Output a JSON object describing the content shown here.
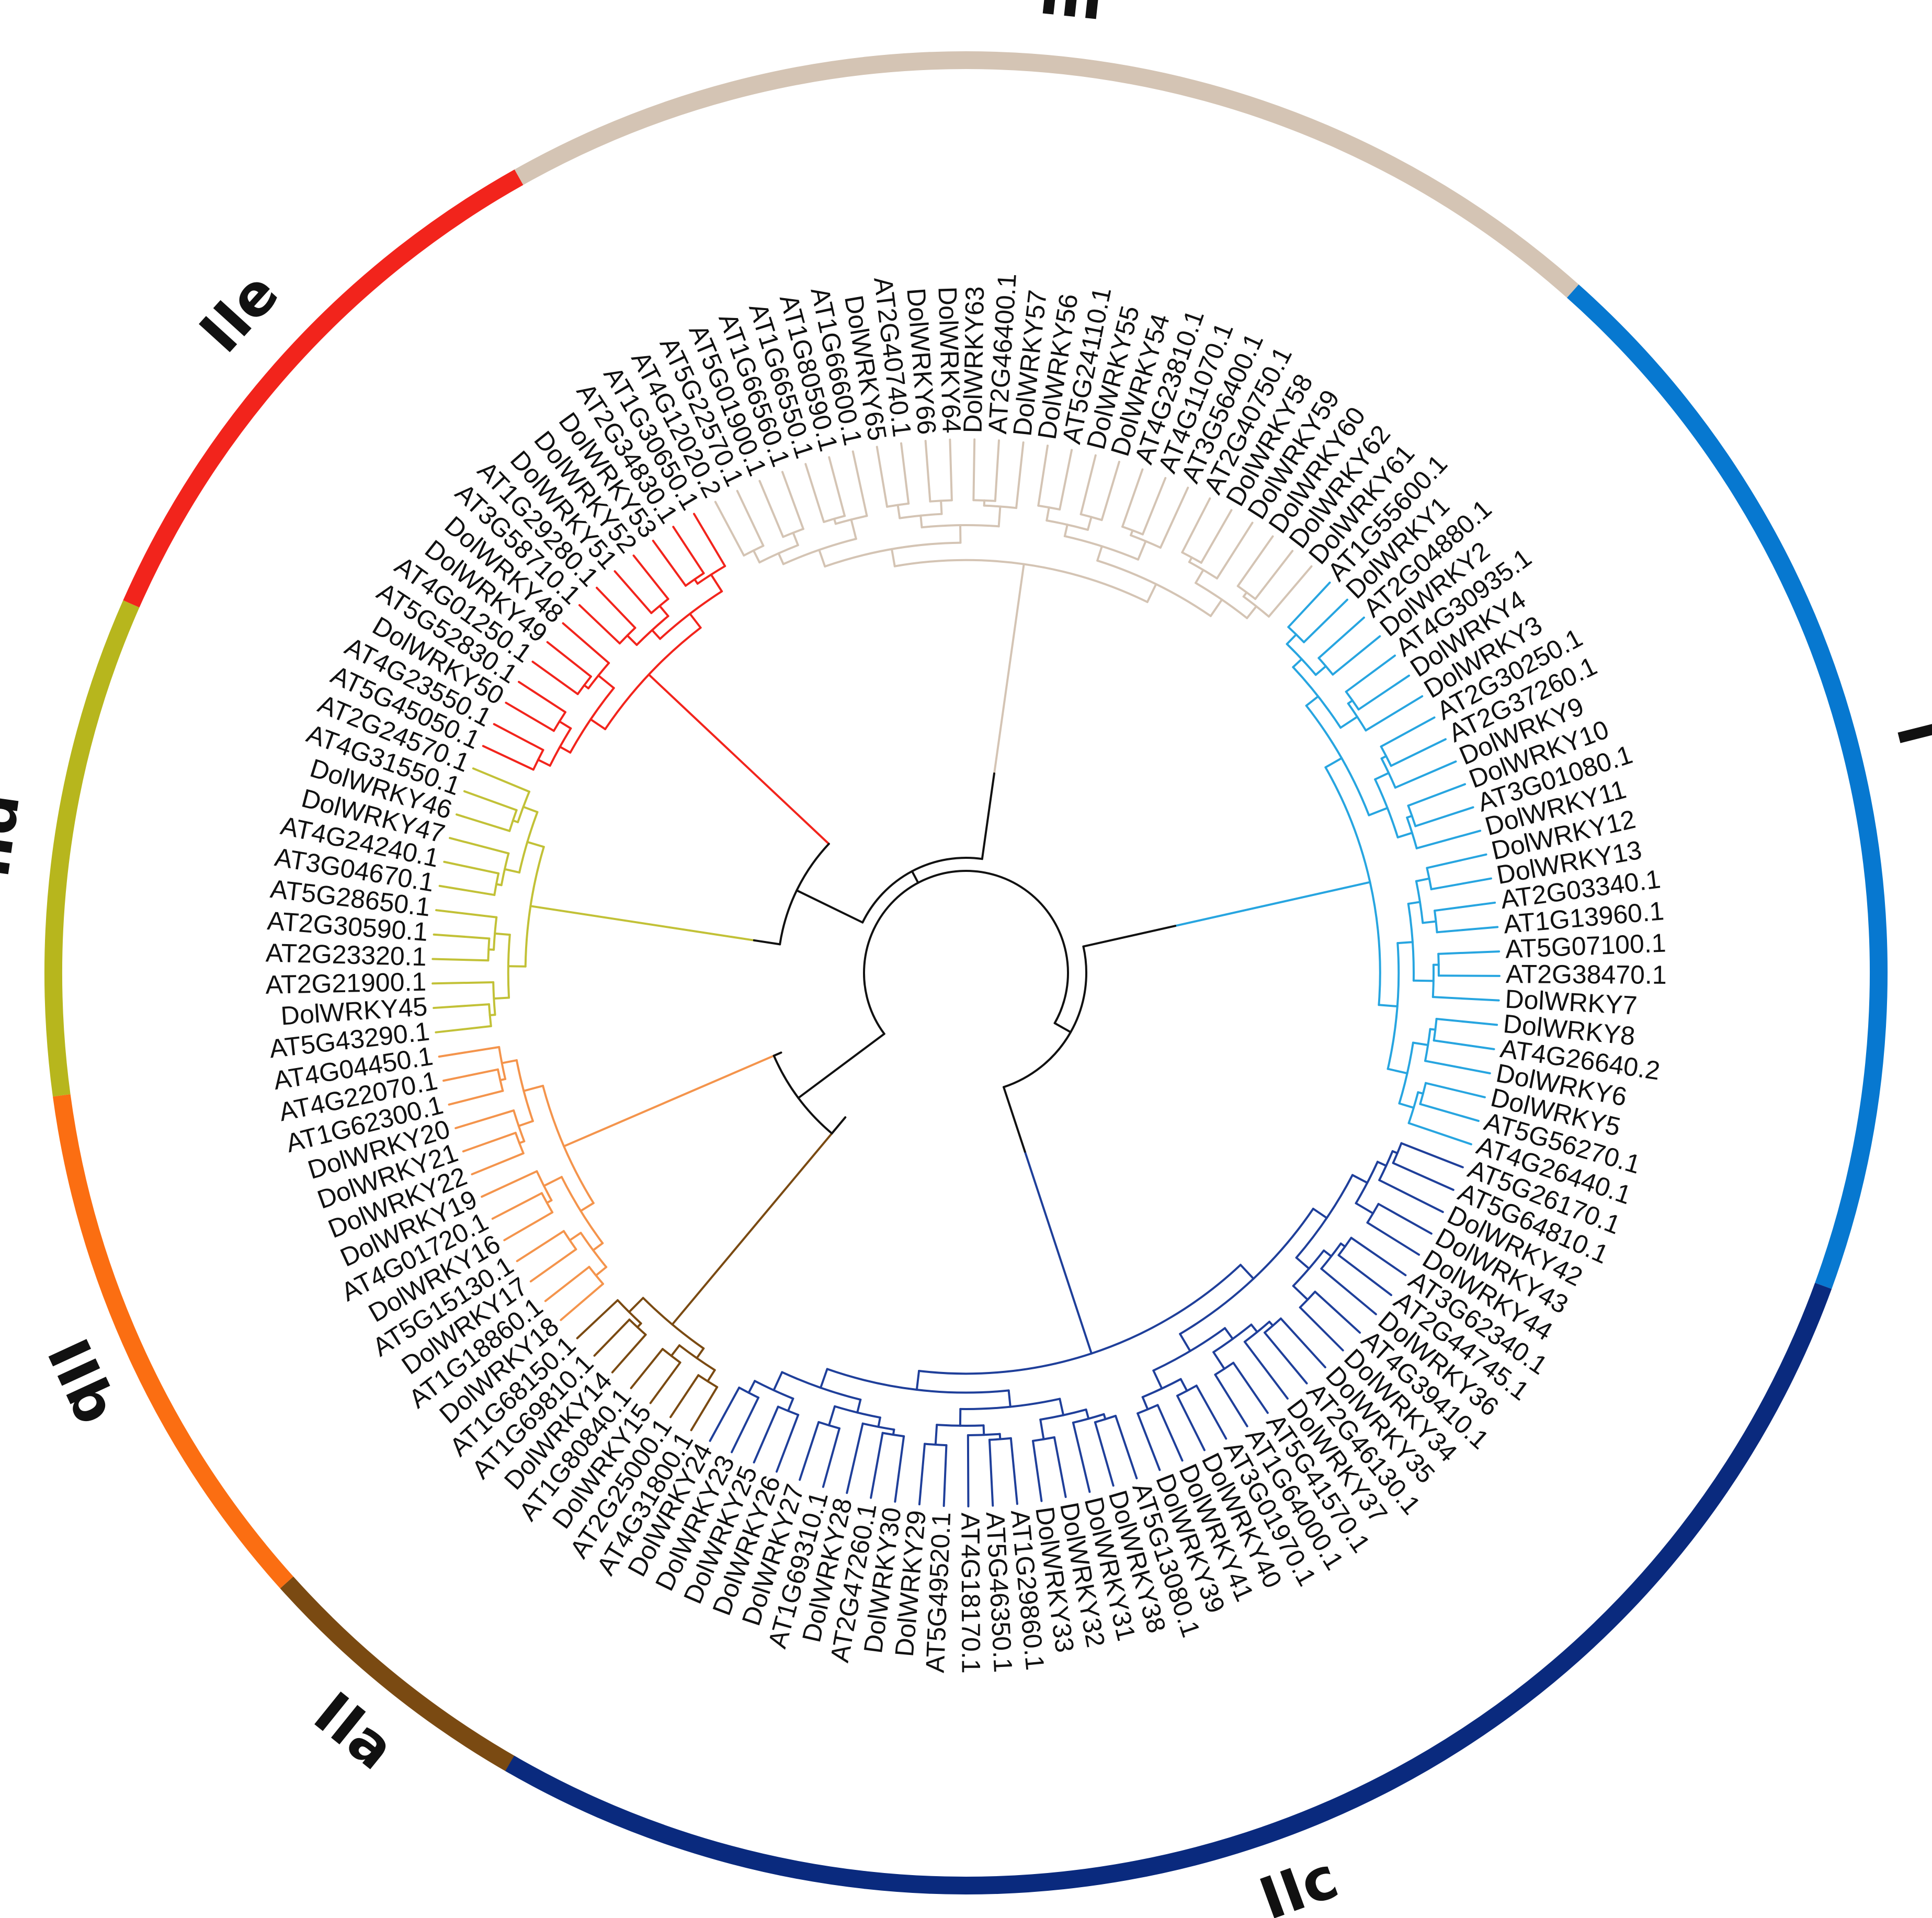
{
  "figure": {
    "title": "",
    "type": "circular phylogenetic tree"
  },
  "backbone_color": "#111111",
  "groups": [
    {
      "label": "IIa",
      "color": "#7a4a12",
      "branch_color": "#7a4a12",
      "leaves": [
        "AT4G31800.1",
        "AT2G25000.1",
        "DolWRKY15",
        "AT1G80840.1",
        "DolWRKY14",
        "AT1G69810.1",
        "AT1G68150.1"
      ]
    },
    {
      "label": "IIb",
      "color": "#fb6e12",
      "branch_color": "#f4944c",
      "leaves": [
        "DolWRKY18",
        "AT1G18860.1",
        "DolWRKY17",
        "AT5G15130.1",
        "DolWRKY16",
        "AT4G01720.1",
        "DolWRKY19",
        "DolWRKY22",
        "DolWRKY21",
        "DolWRKY20",
        "AT1G62300.1",
        "AT4G22070.1",
        "AT4G04450.1"
      ]
    },
    {
      "label": "IId",
      "color": "#b7b61d",
      "branch_color": "#c2c137",
      "leaves": [
        "AT5G43290.1",
        "DolWRKY45",
        "AT2G21900.1",
        "AT2G23320.1",
        "AT2G30590.1",
        "AT5G28650.1",
        "AT3G04670.1",
        "AT4G24240.1",
        "DolWRKY47",
        "DolWRKY46",
        "AT4G31550.1",
        "AT2G24570.1"
      ]
    },
    {
      "label": "IIe",
      "color": "#f2241c",
      "branch_color": "#f2241c",
      "leaves": [
        "AT5G45050.1",
        "AT4G23550.1",
        "DolWRKY50",
        "AT5G52830.1",
        "AT4G01250.1",
        "DolWRKY49",
        "DolWRKY48",
        "AT3G58710.1",
        "AT1G29280.1",
        "DolWRKY51",
        "DolWRKY52",
        "DolWRKY53",
        "AT2G34830.1",
        "AT1G30650.1"
      ]
    },
    {
      "label": "III",
      "color": "#d4c4b4",
      "branch_color": "#d4c4b4",
      "leaves": [
        "AT4G12020.2",
        "AT5G22570.1",
        "AT5G01900.1",
        "AT1G66560.1",
        "AT1G66550.1",
        "AT1G80590.1",
        "AT1G66600.1",
        "DolWRKY65",
        "AT2G40740.1",
        "DolWRKY66",
        "DolWRKY64",
        "DolWRKY63",
        "AT2G46400.1",
        "DolWRKY57",
        "DolWRKY56",
        "AT5G24110.1",
        "DolWRKY55",
        "DolWRKY54",
        "AT4G23810.1",
        "AT4G11070.1",
        "AT3G56400.1",
        "AT2G40750.1",
        "DolWRKY58",
        "DolWRKY59",
        "DolWRKY60",
        "DolWRKY62",
        "DolWRKY61"
      ]
    },
    {
      "label": "I",
      "color": "#0778d0",
      "branch_color": "#27a5e0",
      "leaves": [
        "AT1G55600.1",
        "DolWRKY1",
        "AT2G04880.1",
        "DolWRKY2",
        "AT4G30935.1",
        "DolWRKY4",
        "DolWRKY3",
        "AT2G30250.1",
        "AT2G37260.1",
        "DolWRKY9",
        "DolWRKY10",
        "AT3G01080.1",
        "DolWRKY11",
        "DolWRKY12",
        "DolWRKY13",
        "AT2G03340.1",
        "AT1G13960.1",
        "AT5G07100.1",
        "AT2G38470.1",
        "DolWRKY7",
        "DolWRKY8",
        "AT4G26640.2",
        "DolWRKY6",
        "DolWRKY5",
        "AT5G56270.1",
        "AT4G26440.1"
      ]
    },
    {
      "label": "IIc",
      "color": "#0a2a7e",
      "branch_color": "#1f3f9a",
      "leaves": [
        "AT5G26170.1",
        "AT5G64810.1",
        "DolWRKY42",
        "DolWRKY43",
        "DolWRKY44",
        "AT3G62340.1",
        "AT2G44745.1",
        "DolWRKY36",
        "AT4G39410.1",
        "DolWRKY34",
        "DolWRKY35",
        "AT2G46130.1",
        "DolWRKY37",
        "AT5G41570.1",
        "AT1G64000.1",
        "AT3G01970.1",
        "DolWRKY40",
        "DolWRKY41",
        "DolWRKY39",
        "AT5G13080.1",
        "DolWRKY38",
        "DolWRKY31",
        "DolWRKY32",
        "DolWRKY33",
        "AT1G29860.1",
        "AT5G46350.1",
        "AT4G18170.1",
        "AT5G49520.1",
        "DolWRKY29",
        "DolWRKY30",
        "AT2G47260.1",
        "DolWRKY28",
        "AT1G69310.1",
        "DolWRKY27",
        "DolWRKY26",
        "DolWRKY25",
        "DolWRKY23",
        "DolWRKY24"
      ]
    }
  ]
}
